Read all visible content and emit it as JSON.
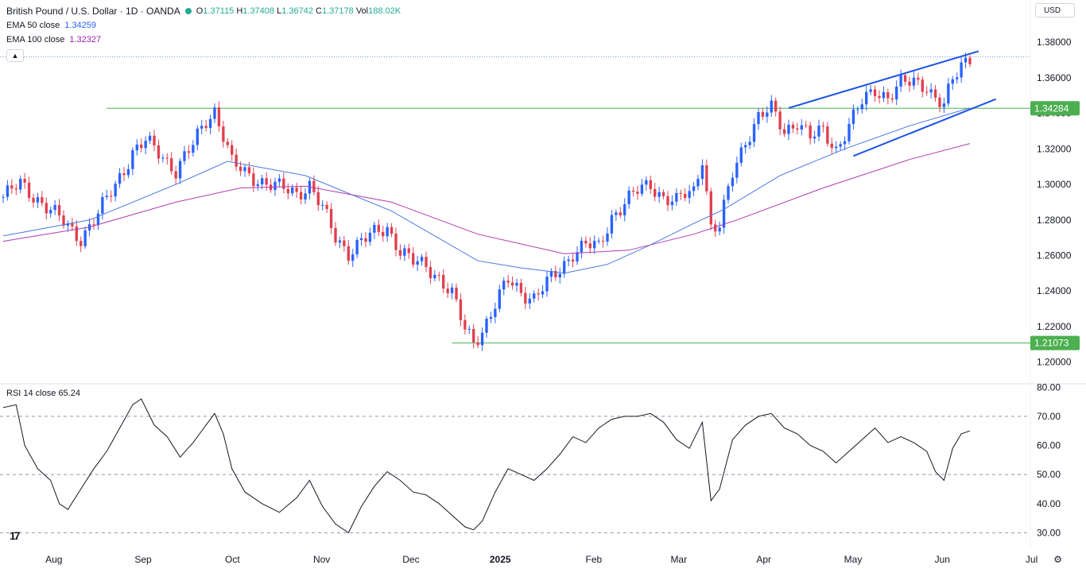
{
  "header": {
    "symbol": "British Pound / U.S. Dollar · 1D · OANDA",
    "ohlc": [
      {
        "k": "O",
        "v": "1.37115"
      },
      {
        "k": "H",
        "v": "1.37408"
      },
      {
        "k": "L",
        "v": "1.36742"
      },
      {
        "k": "C",
        "v": "1.37178"
      },
      {
        "k": "Vol",
        "v": "188.02K"
      }
    ],
    "ema50_label": "EMA 50 close",
    "ema50_value": "1.34259",
    "ema100_label": "EMA 100 close",
    "ema100_value": "1.32327",
    "currency": "USD",
    "collapse_icon": "chevron-up-icon"
  },
  "rsi_panel": {
    "label": "RSI 14 close",
    "value": "65.24"
  },
  "colors": {
    "up": "#2962ff",
    "down": "#e0404f",
    "ema50": "#4a78e0",
    "ema100": "#b03cb0",
    "level": "#4caf50",
    "channel": "#1e53e5",
    "rsi": "#131722",
    "badge_bg": "#4caf50"
  },
  "chart_data": [
    {
      "type": "candlestick",
      "title": "British Pound / U.S. Dollar · 1D · OANDA",
      "x_ticks": [
        "Aug",
        "Sep",
        "Oct",
        "Nov",
        "Dec",
        "2025",
        "Feb",
        "Mar",
        "Apr",
        "May",
        "Jun",
        "Jul"
      ],
      "y_ticks": [
        "1.20000",
        "1.22000",
        "1.24000",
        "1.26000",
        "1.28000",
        "1.30000",
        "1.32000",
        "1.34000",
        "1.36000",
        "1.38000"
      ],
      "ylim": [
        1.19,
        1.385
      ],
      "horizontal_levels": [
        {
          "label": "1.34284",
          "value": 1.34284
        },
        {
          "label": "1.21073",
          "value": 1.21073
        }
      ],
      "price_path": [
        [
          0,
          1.293
        ],
        [
          4,
          1.3
        ],
        [
          8,
          1.292
        ],
        [
          12,
          1.283
        ],
        [
          16,
          1.274
        ],
        [
          18,
          1.27
        ],
        [
          22,
          1.283
        ],
        [
          26,
          1.3
        ],
        [
          30,
          1.318
        ],
        [
          33,
          1.324
        ],
        [
          37,
          1.316
        ],
        [
          40,
          1.308
        ],
        [
          44,
          1.322
        ],
        [
          47,
          1.336
        ],
        [
          49,
          1.342
        ],
        [
          51,
          1.328
        ],
        [
          53,
          1.312
        ],
        [
          56,
          1.306
        ],
        [
          60,
          1.302
        ],
        [
          64,
          1.298
        ],
        [
          68,
          1.295
        ],
        [
          71,
          1.3
        ],
        [
          74,
          1.286
        ],
        [
          77,
          1.27
        ],
        [
          80,
          1.262
        ],
        [
          83,
          1.268
        ],
        [
          86,
          1.272
        ],
        [
          89,
          1.276
        ],
        [
          92,
          1.263
        ],
        [
          95,
          1.256
        ],
        [
          98,
          1.254
        ],
        [
          101,
          1.248
        ],
        [
          104,
          1.238
        ],
        [
          107,
          1.218
        ],
        [
          109,
          1.212
        ],
        [
          111,
          1.218
        ],
        [
          114,
          1.232
        ],
        [
          117,
          1.246
        ],
        [
          120,
          1.24
        ],
        [
          123,
          1.236
        ],
        [
          126,
          1.244
        ],
        [
          129,
          1.252
        ],
        [
          132,
          1.262
        ],
        [
          135,
          1.266
        ],
        [
          138,
          1.264
        ],
        [
          141,
          1.282
        ],
        [
          144,
          1.29
        ],
        [
          147,
          1.296
        ],
        [
          150,
          1.3
        ],
        [
          153,
          1.293
        ],
        [
          156,
          1.29
        ],
        [
          158,
          1.294
        ],
        [
          160,
          1.296
        ],
        [
          162,
          1.316
        ],
        [
          164,
          1.276
        ],
        [
          166,
          1.276
        ],
        [
          169,
          1.306
        ],
        [
          172,
          1.325
        ],
        [
          175,
          1.338
        ],
        [
          178,
          1.342
        ],
        [
          181,
          1.33
        ],
        [
          184,
          1.336
        ],
        [
          187,
          1.326
        ],
        [
          190,
          1.33
        ],
        [
          193,
          1.32
        ],
        [
          196,
          1.333
        ],
        [
          199,
          1.346
        ],
        [
          202,
          1.354
        ],
        [
          205,
          1.349
        ],
        [
          208,
          1.356
        ],
        [
          211,
          1.358
        ],
        [
          214,
          1.356
        ],
        [
          216,
          1.348
        ],
        [
          218,
          1.344
        ],
        [
          220,
          1.358
        ],
        [
          222,
          1.368
        ],
        [
          224,
          1.372
        ]
      ],
      "ema50_path": [
        [
          0,
          1.271
        ],
        [
          20,
          1.28
        ],
        [
          40,
          1.3
        ],
        [
          52,
          1.313
        ],
        [
          70,
          1.305
        ],
        [
          90,
          1.285
        ],
        [
          110,
          1.257
        ],
        [
          120,
          1.253
        ],
        [
          130,
          1.25
        ],
        [
          140,
          1.255
        ],
        [
          150,
          1.266
        ],
        [
          160,
          1.278
        ],
        [
          167,
          1.286
        ],
        [
          180,
          1.305
        ],
        [
          195,
          1.32
        ],
        [
          210,
          1.333
        ],
        [
          224,
          1.343
        ]
      ],
      "ema100_path": [
        [
          0,
          1.268
        ],
        [
          20,
          1.276
        ],
        [
          40,
          1.29
        ],
        [
          55,
          1.298
        ],
        [
          70,
          1.299
        ],
        [
          90,
          1.29
        ],
        [
          110,
          1.272
        ],
        [
          130,
          1.261
        ],
        [
          145,
          1.263
        ],
        [
          160,
          1.272
        ],
        [
          170,
          1.28
        ],
        [
          190,
          1.298
        ],
        [
          210,
          1.314
        ],
        [
          224,
          1.323
        ]
      ],
      "channel_upper": [
        [
          182,
          1.343
        ],
        [
          226,
          1.375
        ]
      ],
      "channel_lower": [
        [
          197,
          1.316
        ],
        [
          230,
          1.348
        ]
      ]
    },
    {
      "type": "line",
      "title": "RSI 14 close",
      "y_ticks": [
        "30.00",
        "40.00",
        "50.00",
        "60.00",
        "70.00",
        "80.00"
      ],
      "ylim": [
        26,
        82
      ],
      "reference_lines": [
        30,
        50,
        70
      ],
      "series": [
        {
          "values": [
            [
              0,
              73
            ],
            [
              3,
              74
            ],
            [
              5,
              60
            ],
            [
              8,
              52
            ],
            [
              11,
              48
            ],
            [
              13,
              40
            ],
            [
              15,
              38
            ],
            [
              18,
              45
            ],
            [
              21,
              52
            ],
            [
              24,
              58
            ],
            [
              27,
              66
            ],
            [
              30,
              74
            ],
            [
              32,
              76
            ],
            [
              35,
              67
            ],
            [
              38,
              63
            ],
            [
              41,
              56
            ],
            [
              44,
              61
            ],
            [
              47,
              67
            ],
            [
              49,
              71
            ],
            [
              51,
              64
            ],
            [
              53,
              52
            ],
            [
              56,
              44
            ],
            [
              60,
              40
            ],
            [
              64,
              37
            ],
            [
              68,
              42
            ],
            [
              71,
              48
            ],
            [
              74,
              39
            ],
            [
              77,
              33
            ],
            [
              80,
              30
            ],
            [
              83,
              39
            ],
            [
              86,
              46
            ],
            [
              89,
              51
            ],
            [
              92,
              48
            ],
            [
              95,
              44
            ],
            [
              98,
              43
            ],
            [
              101,
              40
            ],
            [
              104,
              36
            ],
            [
              107,
              32
            ],
            [
              109,
              31
            ],
            [
              111,
              34
            ],
            [
              114,
              44
            ],
            [
              117,
              52
            ],
            [
              120,
              50
            ],
            [
              123,
              48
            ],
            [
              126,
              52
            ],
            [
              129,
              57
            ],
            [
              132,
              63
            ],
            [
              135,
              61
            ],
            [
              138,
              66
            ],
            [
              141,
              69
            ],
            [
              144,
              70
            ],
            [
              147,
              70
            ],
            [
              150,
              71
            ],
            [
              153,
              68
            ],
            [
              156,
              62
            ],
            [
              159,
              59
            ],
            [
              162,
              68
            ],
            [
              164,
              41
            ],
            [
              166,
              45
            ],
            [
              169,
              62
            ],
            [
              172,
              67
            ],
            [
              175,
              70
            ],
            [
              178,
              71
            ],
            [
              181,
              66
            ],
            [
              184,
              64
            ],
            [
              187,
              60
            ],
            [
              190,
              58
            ],
            [
              193,
              54
            ],
            [
              196,
              58
            ],
            [
              199,
              62
            ],
            [
              202,
              66
            ],
            [
              205,
              61
            ],
            [
              208,
              63
            ],
            [
              211,
              61
            ],
            [
              214,
              58
            ],
            [
              216,
              51
            ],
            [
              218,
              48
            ],
            [
              220,
              59
            ],
            [
              222,
              64
            ],
            [
              224,
              65
            ]
          ]
        }
      ]
    }
  ]
}
